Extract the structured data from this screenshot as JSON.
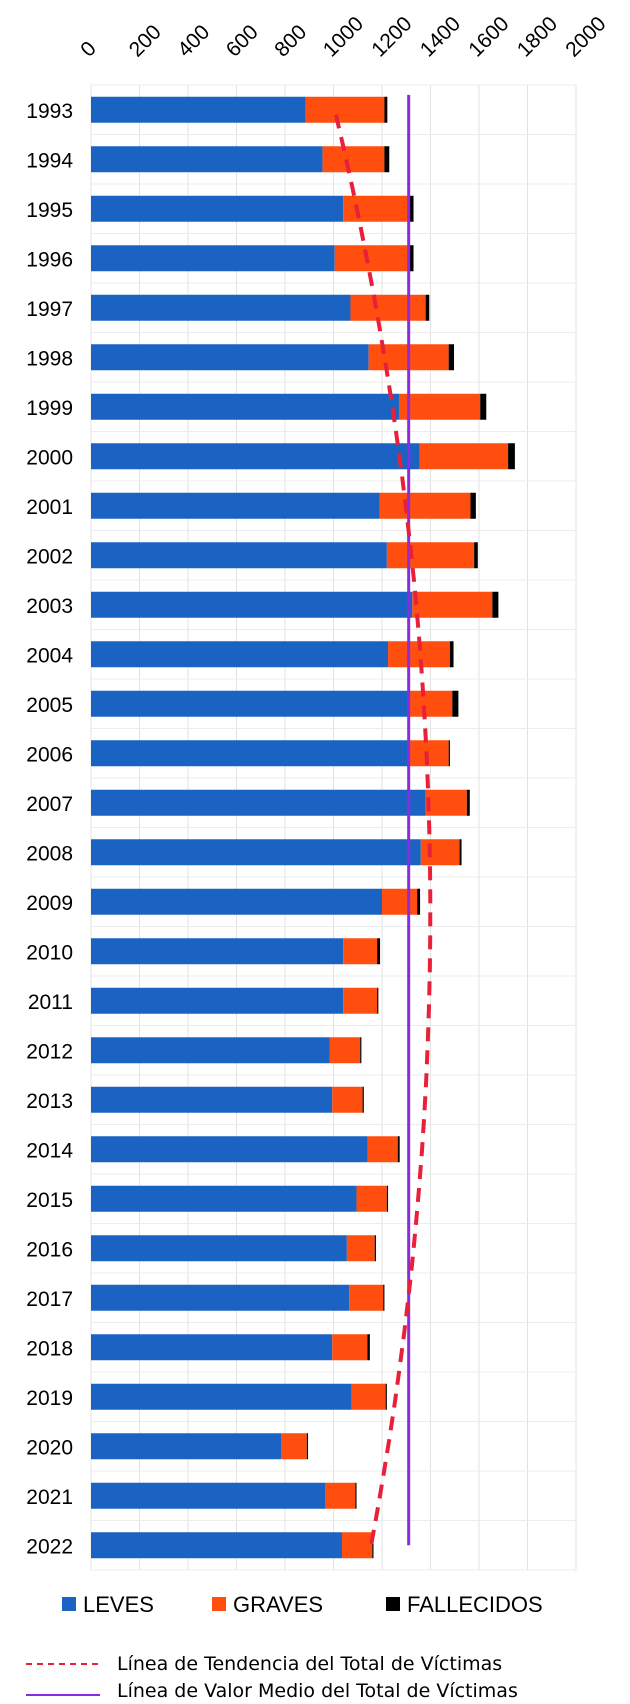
{
  "chart_data": {
    "type": "bar",
    "orientation": "horizontal",
    "stacked": true,
    "xlim": [
      0,
      2000
    ],
    "x_ticks": [
      "0",
      "200",
      "400",
      "600",
      "800",
      "1000",
      "1200",
      "1400",
      "1600",
      "1800",
      "2000"
    ],
    "x_axis_position": "top",
    "grid": true,
    "categories": [
      "1993",
      "1994",
      "1995",
      "1996",
      "1997",
      "1998",
      "1999",
      "2000",
      "2001",
      "2002",
      "2003",
      "2004",
      "2005",
      "2006",
      "2007",
      "2008",
      "2009",
      "2010",
      "2011",
      "2012",
      "2013",
      "2014",
      "2015",
      "2016",
      "2017",
      "2018",
      "2019",
      "2020",
      "2021",
      "2022"
    ],
    "series": [
      {
        "name": "LEVES",
        "color": "#1b63c2",
        "values": [
          885,
          955,
          1040,
          1005,
          1070,
          1145,
          1270,
          1355,
          1190,
          1220,
          1325,
          1225,
          1305,
          1305,
          1380,
          1360,
          1200,
          1040,
          1040,
          985,
          995,
          1140,
          1095,
          1055,
          1065,
          995,
          1075,
          785,
          965,
          1035
        ]
      },
      {
        "name": "GRAVES",
        "color": "#ff4e0e",
        "values": [
          325,
          255,
          270,
          305,
          310,
          330,
          335,
          365,
          375,
          360,
          330,
          255,
          185,
          170,
          170,
          160,
          145,
          140,
          140,
          125,
          125,
          125,
          125,
          115,
          140,
          145,
          140,
          105,
          125,
          125
        ]
      },
      {
        "name": "FALLECIDOS",
        "color": "#000000",
        "values": [
          12,
          20,
          20,
          20,
          15,
          22,
          25,
          28,
          22,
          15,
          25,
          15,
          25,
          5,
          12,
          8,
          12,
          12,
          5,
          5,
          5,
          8,
          5,
          5,
          5,
          10,
          5,
          5,
          5,
          5
        ]
      }
    ],
    "reference_lines": [
      {
        "name": "Línea de Tendencia del Total de Víctimas",
        "style": "dashed",
        "color": "#e8203a",
        "start": 1010,
        "end": 1155
      },
      {
        "name": "Línea de Valor Medio del Total de Víctimas",
        "style": "solid",
        "color": "#8a2be2",
        "value": 1310
      }
    ],
    "legend_position": "bottom"
  }
}
